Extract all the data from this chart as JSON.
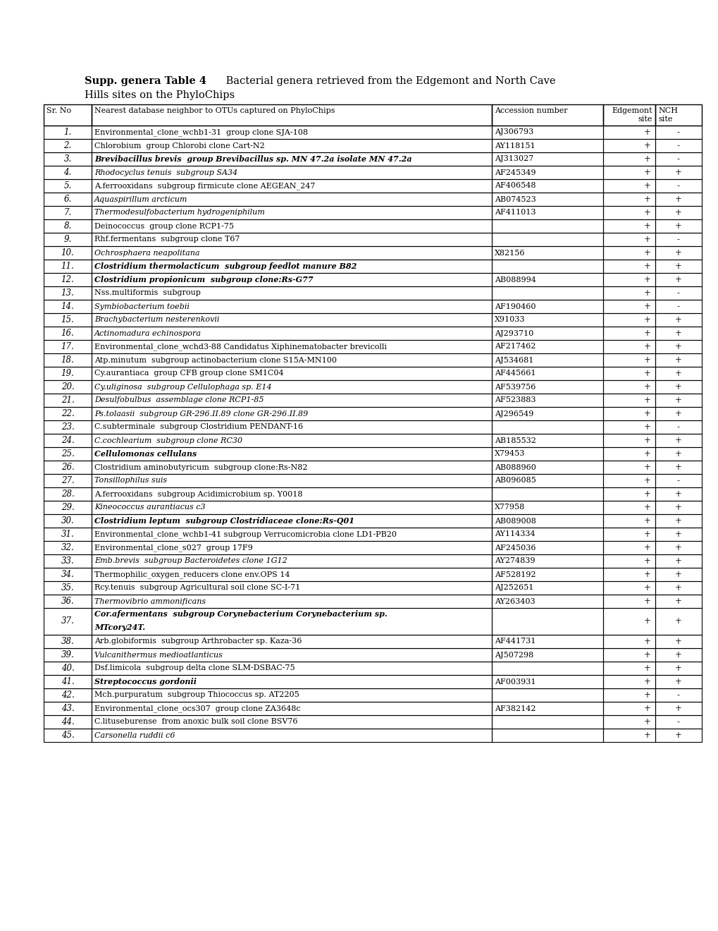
{
  "title_bold": "Supp. genera Table 4",
  "title_normal": " Bacterial genera retrieved from the Edgemont and North Cave",
  "title_line2": "Hills sites on the PhyloChips",
  "col_headers": [
    "Sr. No",
    "Nearest database neighbor to OTUs captured on PhyloChips",
    "Accession number",
    "Edgemont\nsite",
    "NCH\nsite"
  ],
  "rows": [
    [
      "1.",
      "Environmental_clone_wchb1-31  group clone SJA-108",
      "AJ306793",
      "+",
      "-"
    ],
    [
      "2.",
      "Chlorobium  group Chlorobi clone Cart-N2",
      "AY118151",
      "+",
      "-"
    ],
    [
      "3.",
      "Brevibacillus brevis  group Brevibacillus sp. MN 47.2a isolate MN 47.2a",
      "AJ313027",
      "+",
      "-"
    ],
    [
      "4.",
      "Rhodocyclus tenuis  subgroup SA34",
      "AF245349",
      "+",
      "+"
    ],
    [
      "5.",
      "A.ferrooxidans  subgroup firmicute clone AEGEAN_247",
      "AF406548",
      "+",
      "-"
    ],
    [
      "6.",
      "Aquaspirillum arcticum",
      "AB074523",
      "+",
      "+"
    ],
    [
      "7.",
      "Thermodesulfobacterium hydrogeniphilum",
      "AF411013",
      "+",
      "+"
    ],
    [
      "8.",
      "Deinococcus  group clone RCP1-75",
      "",
      "+",
      "+"
    ],
    [
      "9.",
      "Rhf.fermentans  subgroup clone T67",
      "",
      "+",
      "-"
    ],
    [
      "10.",
      "Ochrosphaera neapolitana",
      "X82156",
      "+",
      "+"
    ],
    [
      "11.",
      "Clostridium thermolacticum  subgroup feedlot manure B82",
      "",
      "+",
      "+"
    ],
    [
      "12.",
      "Clostridium propionicum  subgroup clone:Rs-G77",
      "AB088994",
      "+",
      "+"
    ],
    [
      "13.",
      "Nss.multiformis  subgroup",
      "",
      "+",
      "-"
    ],
    [
      "14.",
      "Symbiobacterium toebii",
      "AF190460",
      "+",
      "-"
    ],
    [
      "15.",
      "Brachybacterium nesterenkovii",
      "X91033",
      "+",
      "+"
    ],
    [
      "16.",
      "Actinomadura echinospora",
      "AJ293710",
      "+",
      "+"
    ],
    [
      "17.",
      "Environmental_clone_wchd3-88 Candidatus Xiphinematobacter brevicolli",
      "AF217462",
      "+",
      "+"
    ],
    [
      "18.",
      "Atp.minutum  subgroup actinobacterium clone S15A-MN100",
      "AJ534681",
      "+",
      "+"
    ],
    [
      "19.",
      "Cy.aurantiaca  group CFB group clone SM1C04",
      "AF445661",
      "+",
      "+"
    ],
    [
      "20.",
      "Cy.uliginosa  subgroup Cellulophaga sp. E14",
      "AF539756",
      "+",
      "+"
    ],
    [
      "21.",
      "Desulfobulbus  assemblage clone RCP1-85",
      "AF523883",
      "+",
      "+"
    ],
    [
      "22.",
      "Ps.tolaasii  subgroup GR-296.II.89 clone GR-296.II.89",
      "AJ296549",
      "+",
      "+"
    ],
    [
      "23.",
      "C.subterminale  subgroup Clostridium PENDANT-16",
      "",
      "+",
      "-"
    ],
    [
      "24.",
      "C.cochlearium  subgroup clone RC30",
      "AB185532",
      "+",
      "+"
    ],
    [
      "25.",
      "Cellulomonas cellulans",
      "X79453",
      "+",
      "+"
    ],
    [
      "26.",
      "Clostridium aminobutyricum  subgroup clone:Rs-N82",
      "AB088960",
      "+",
      "+"
    ],
    [
      "27.",
      "Tonsillophilus suis",
      "AB096085",
      "+",
      "-"
    ],
    [
      "28.",
      "A.ferrooxidans  subgroup Acidimicrobium sp. Y0018",
      "",
      "+",
      "+"
    ],
    [
      "29.",
      "Kineococcus aurantiacus c3",
      "X77958",
      "+",
      "+"
    ],
    [
      "30.",
      "Clostridium leptum  subgroup Clostridiaceae clone:Rs-Q01",
      "AB089008",
      "+",
      "+"
    ],
    [
      "31.",
      "Environmental_clone_wchb1-41 subgroup Verrucomicrobia clone LD1-PB20",
      "AY114334",
      "+",
      "+"
    ],
    [
      "32.",
      "Environmental_clone_s027  group 17F9",
      "AF245036",
      "+",
      "+"
    ],
    [
      "33.",
      "Emb.brevis  subgroup Bacteroidetes clone 1G12",
      "AY274839",
      "+",
      "+"
    ],
    [
      "34.",
      "Thermophilic_oxygen_reducers clone env.OPS 14",
      "AF528192",
      "+",
      "+"
    ],
    [
      "35.",
      "Rcy.tenuis  subgroup Agricultural soil clone SC-I-71",
      "AJ252651",
      "+",
      "+"
    ],
    [
      "36.",
      "Thermovibrio ammonificans",
      "AY263403",
      "+",
      "+"
    ],
    [
      "37.",
      "Cor.afermentans  subgroup Corynebacterium Corynebacterium sp.\nMTcory24T.",
      "",
      "+",
      "+"
    ],
    [
      "38.",
      "Arb.globiformis  subgroup Arthrobacter sp. Kaza-36",
      "AF441731",
      "+",
      "+"
    ],
    [
      "39.",
      "Vulcanithermus medioatlanticus",
      "AJ507298",
      "+",
      "+"
    ],
    [
      "40.",
      "Dsf.limicola  subgroup delta clone SLM-DSBAC-75",
      "",
      "+",
      "+"
    ],
    [
      "41.",
      "Streptococcus gordonii",
      "AF003931",
      "+",
      "+"
    ],
    [
      "42.",
      "Mch.purpuratum  subgroup Thiococcus sp. AT2205",
      "",
      "+",
      "-"
    ],
    [
      "43.",
      "Environmental_clone_ocs307  group clone ZA3648c",
      "AF382142",
      "+",
      "+"
    ],
    [
      "44.",
      "C.lituseburense  from anoxic bulk soil clone BSV76",
      "",
      "+",
      "-"
    ],
    [
      "45.",
      "Carsonella ruddii c6",
      "",
      "+",
      "+"
    ]
  ],
  "bold_italic_rows": [
    3,
    11,
    12,
    25,
    30,
    37,
    41
  ],
  "italic_only_rows": [
    4,
    6,
    7,
    10,
    14,
    15,
    16,
    20,
    21,
    22,
    24,
    27,
    29,
    33,
    36,
    39,
    45
  ],
  "background_color": "#ffffff"
}
